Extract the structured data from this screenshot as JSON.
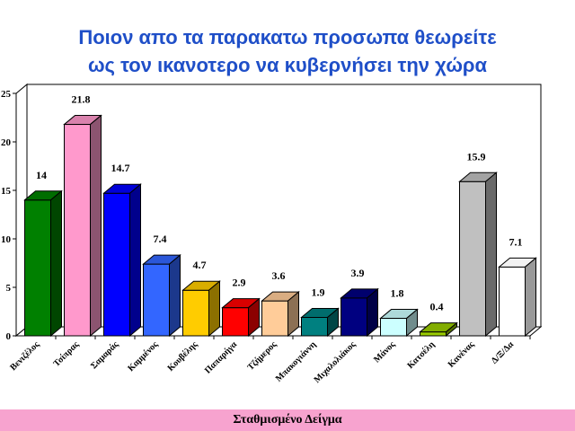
{
  "title_line1": "Ποιον απο τα παρακατω προσωπα θεωρείτε",
  "title_line2": "ως τον ικανοτερο να κυβερνήσει την χώρα",
  "footer": "Σταθμισμένο Δείγμα",
  "chart_data": {
    "type": "bar",
    "categories": [
      "Βενιζέλος",
      "Τσίπρας",
      "Σαμαράς",
      "Καμμένος",
      "Κουβέλης",
      "Παπαρήγα",
      "Τζήμερος",
      "Μπακογιάννη",
      "Μιχαλολιάκος",
      "Μάνος",
      "Κατσέλη",
      "Κανένας",
      "Δ/Ξ/Δα"
    ],
    "values": [
      14,
      21.8,
      14.7,
      7.4,
      4.7,
      2.9,
      3.6,
      1.9,
      3.9,
      1.8,
      0.4,
      15.9,
      7.1
    ],
    "value_labels": [
      "14",
      "21.8",
      "14.7",
      "7.4",
      "4.7",
      "2.9",
      "3.6",
      "1.9",
      "3.9",
      "1.8",
      "0.4",
      "15.9",
      "7.1"
    ],
    "colors": [
      "#008000",
      "#ff99cc",
      "#0000ff",
      "#3366ff",
      "#ffcc00",
      "#ff0000",
      "#ffcc99",
      "#008080",
      "#000080",
      "#ccffff",
      "#99cc00",
      "#c0c0c0",
      "#ffffff"
    ],
    "yticks": [
      "0",
      "5",
      "10",
      "15",
      "20",
      "25"
    ],
    "ylim": [
      0,
      25
    ],
    "grid": false,
    "style": "3d"
  }
}
